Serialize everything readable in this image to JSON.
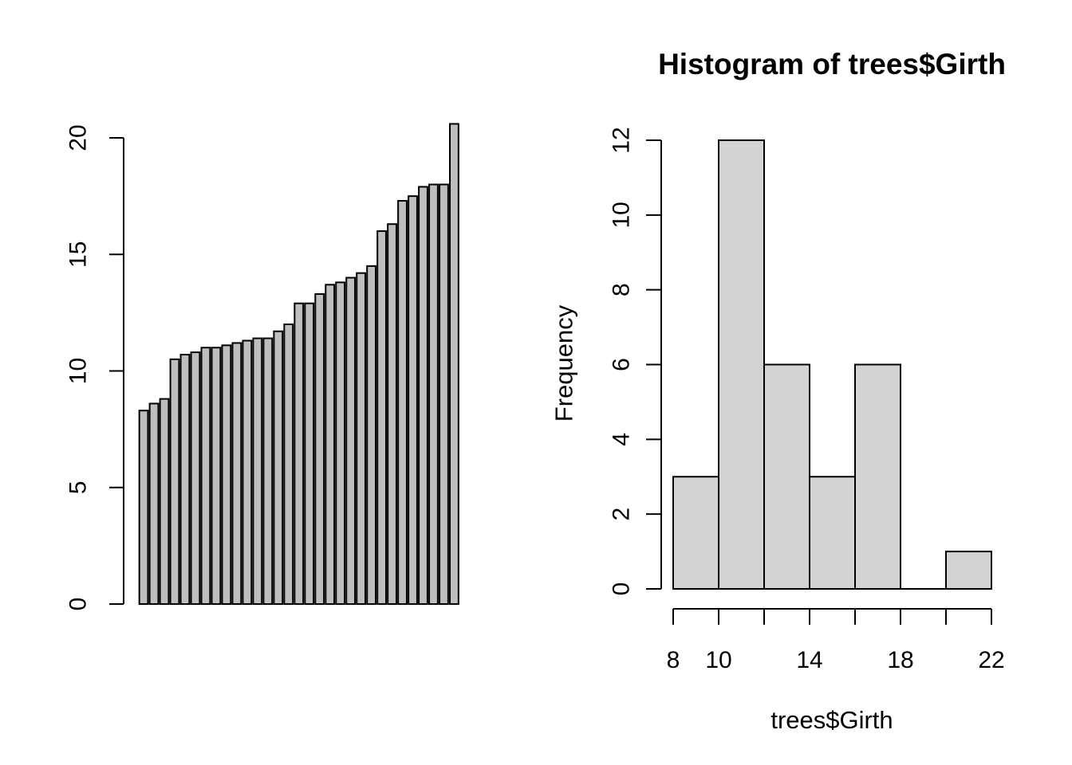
{
  "chart_data": [
    {
      "id": "sorted-girth-barplot",
      "type": "bar",
      "title": "",
      "xlabel": "",
      "ylabel": "",
      "values": [
        8.3,
        8.6,
        8.8,
        10.5,
        10.7,
        10.8,
        11.0,
        11.0,
        11.1,
        11.2,
        11.3,
        11.4,
        11.4,
        11.7,
        12.0,
        12.9,
        12.9,
        13.3,
        13.7,
        13.8,
        14.0,
        14.2,
        14.5,
        16.0,
        16.3,
        17.3,
        17.5,
        17.9,
        18.0,
        18.0,
        20.6
      ],
      "yticks": [
        0,
        5,
        10,
        15,
        20
      ],
      "ylim": [
        0,
        20.6
      ],
      "bar_fill": "#BEBEBE",
      "bar_stroke": "#000000",
      "axis_color": "#000000",
      "grid": false,
      "legend": "none",
      "ytick_rotation_deg": 90
    },
    {
      "id": "girth-histogram",
      "type": "histogram",
      "title": "Histogram of trees$Girth",
      "xlabel": "trees$Girth",
      "ylabel": "Frequency",
      "breaks": [
        8,
        10,
        12,
        14,
        16,
        18,
        20,
        22
      ],
      "counts": [
        3,
        12,
        6,
        3,
        6,
        0,
        1
      ],
      "xticks": [
        8,
        10,
        12,
        14,
        16,
        18,
        20,
        22
      ],
      "xtick_labels": [
        "8",
        "10",
        "",
        "14",
        "",
        "18",
        "",
        "22"
      ],
      "yticks": [
        0,
        2,
        4,
        6,
        8,
        10,
        12
      ],
      "xlim": [
        8,
        22
      ],
      "ylim": [
        0,
        12
      ],
      "bar_fill": "#D3D3D3",
      "bar_stroke": "#000000",
      "axis_color": "#000000",
      "grid": false,
      "legend": "none",
      "ytick_rotation_deg": 90
    }
  ]
}
